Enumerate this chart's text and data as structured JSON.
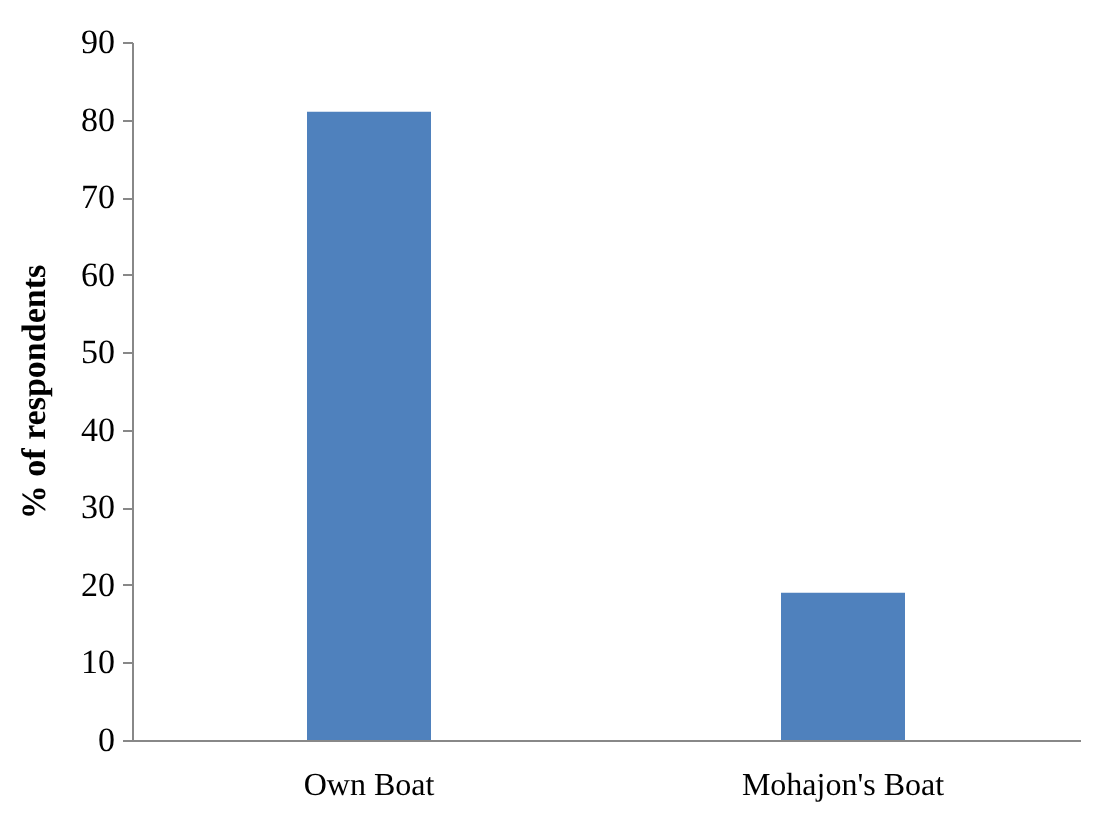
{
  "chart_data": {
    "type": "bar",
    "ylabel": "% of respondents",
    "categories": [
      "Own Boat",
      "Mohajon's Boat"
    ],
    "values": [
      81,
      19
    ],
    "color": "#4f81bd",
    "ylim": [
      0,
      90
    ],
    "yticks": [
      0,
      10,
      20,
      30,
      40,
      50,
      60,
      70,
      80,
      90
    ],
    "grid": false
  }
}
